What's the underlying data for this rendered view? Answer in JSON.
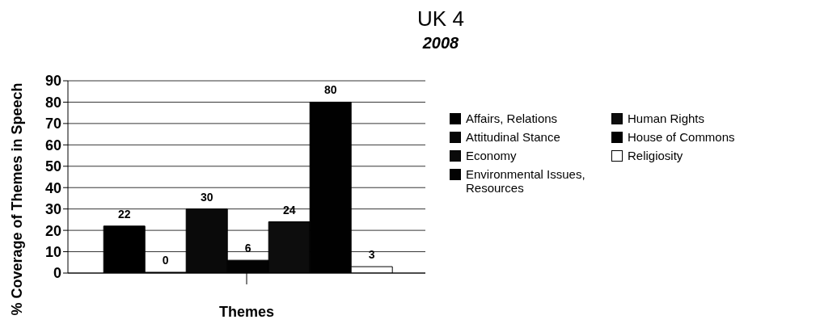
{
  "chart_data": {
    "type": "bar",
    "title": "UK 4",
    "subtitle": "2008",
    "xlabel": "Themes",
    "ylabel": "% Coverage of Themes in Speech",
    "categories": [
      null
    ],
    "series": [
      {
        "name": "Affairs, Relations",
        "color": "#000000",
        "values": [
          22
        ]
      },
      {
        "name": "Attitudinal Stance",
        "color": "#050505",
        "values": [
          0
        ]
      },
      {
        "name": "Economy",
        "color": "#0a0a0a",
        "values": [
          30
        ]
      },
      {
        "name": "Environmental Issues, Resources",
        "color": "#030303",
        "values": [
          6
        ]
      },
      {
        "name": "Human Rights",
        "color": "#0d0d0d",
        "values": [
          24
        ]
      },
      {
        "name": "House of Commons",
        "color": "#010101",
        "values": [
          80
        ]
      },
      {
        "name": "Religiosity",
        "color": "#ffffff",
        "values": [
          3
        ]
      }
    ],
    "ylim": [
      0,
      90
    ],
    "yticks": [
      0,
      10,
      20,
      30,
      40,
      50,
      60,
      70,
      80,
      90
    ],
    "grid": "y",
    "legend": "right",
    "data_labels": true
  }
}
